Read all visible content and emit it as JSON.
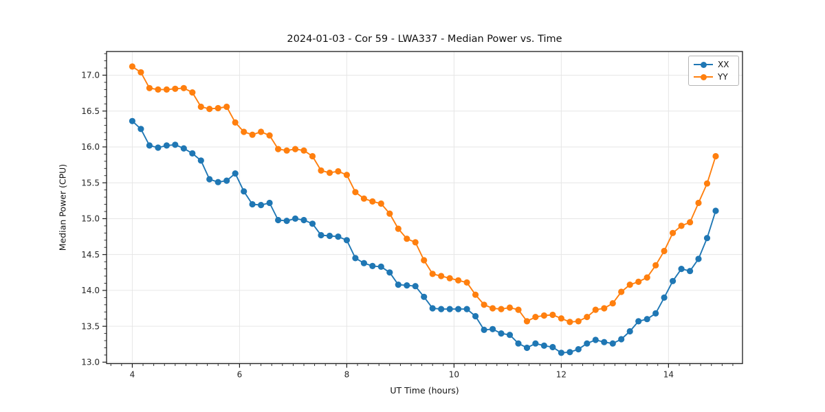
{
  "chart_data": {
    "type": "line",
    "title": "2024-01-03 - Cor 59 - LWA337 - Median Power vs. Time",
    "xlabel": "UT Time (hours)",
    "ylabel": "Median Power (CPU)",
    "xlim": [
      3.52,
      15.38
    ],
    "ylim": [
      12.98,
      17.33
    ],
    "xticks": [
      4,
      6,
      8,
      10,
      12,
      14
    ],
    "xtick_labels": [
      "4",
      "6",
      "8",
      "10",
      "12",
      "14"
    ],
    "yticks": [
      13.0,
      13.5,
      14.0,
      14.5,
      15.0,
      15.5,
      16.0,
      16.5,
      17.0
    ],
    "ytick_labels": [
      "13.0",
      "13.5",
      "14.0",
      "14.5",
      "15.0",
      "15.5",
      "16.0",
      "16.5",
      "17.0"
    ],
    "minor_x_step": 0.2,
    "minor_y_step": 0.1,
    "grid": true,
    "grid_color": "#e6e6e6",
    "spine_color": "#1a1a1a",
    "tick_label_color": "#262626",
    "legend_position": "upper right",
    "x": [
      4.0,
      4.16,
      4.32,
      4.48,
      4.64,
      4.8,
      4.96,
      5.12,
      5.28,
      5.44,
      5.6,
      5.76,
      5.92,
      6.08,
      6.24,
      6.4,
      6.56,
      6.72,
      6.88,
      7.04,
      7.2,
      7.36,
      7.52,
      7.68,
      7.84,
      8.0,
      8.16,
      8.32,
      8.48,
      8.64,
      8.8,
      8.96,
      9.12,
      9.28,
      9.44,
      9.6,
      9.76,
      9.92,
      10.08,
      10.24,
      10.4,
      10.56,
      10.72,
      10.88,
      11.04,
      11.2,
      11.36,
      11.52,
      11.68,
      11.84,
      12.0,
      12.16,
      12.32,
      12.48,
      12.64,
      12.8,
      12.96,
      13.12,
      13.28,
      13.44,
      13.6,
      13.76,
      13.92,
      14.08,
      14.24,
      14.4,
      14.56,
      14.72,
      14.88
    ],
    "series": [
      {
        "name": "XX",
        "color": "#1f77b4",
        "values": [
          16.36,
          16.25,
          16.02,
          15.99,
          16.02,
          16.03,
          15.98,
          15.91,
          15.81,
          15.55,
          15.51,
          15.53,
          15.63,
          15.38,
          15.2,
          15.19,
          15.22,
          14.98,
          14.97,
          15.0,
          14.98,
          14.93,
          14.77,
          14.76,
          14.75,
          14.7,
          14.45,
          14.38,
          14.34,
          14.33,
          14.25,
          14.08,
          14.07,
          14.06,
          13.91,
          13.75,
          13.74,
          13.74,
          13.74,
          13.74,
          13.64,
          13.45,
          13.46,
          13.4,
          13.38,
          13.26,
          13.2,
          13.26,
          13.23,
          13.21,
          13.13,
          13.14,
          13.18,
          13.26,
          13.31,
          13.28,
          13.26,
          13.32,
          13.43,
          13.57,
          13.6,
          13.68,
          13.9,
          14.13,
          14.3,
          14.27,
          14.44,
          14.73,
          15.11
        ]
      },
      {
        "name": "YY",
        "color": "#ff7f0e",
        "values": [
          17.12,
          17.04,
          16.82,
          16.8,
          16.8,
          16.81,
          16.82,
          16.76,
          16.56,
          16.53,
          16.54,
          16.56,
          16.34,
          16.21,
          16.17,
          16.21,
          16.16,
          15.97,
          15.95,
          15.97,
          15.95,
          15.87,
          15.67,
          15.64,
          15.66,
          15.61,
          15.37,
          15.28,
          15.24,
          15.21,
          15.07,
          14.86,
          14.72,
          14.67,
          14.42,
          14.23,
          14.2,
          14.17,
          14.14,
          14.11,
          13.94,
          13.8,
          13.75,
          13.74,
          13.76,
          13.73,
          13.57,
          13.63,
          13.65,
          13.66,
          13.61,
          13.56,
          13.57,
          13.63,
          13.73,
          13.75,
          13.82,
          13.98,
          14.08,
          14.12,
          14.18,
          14.35,
          14.55,
          14.8,
          14.9,
          14.95,
          15.22,
          15.49,
          15.87
        ]
      }
    ]
  }
}
